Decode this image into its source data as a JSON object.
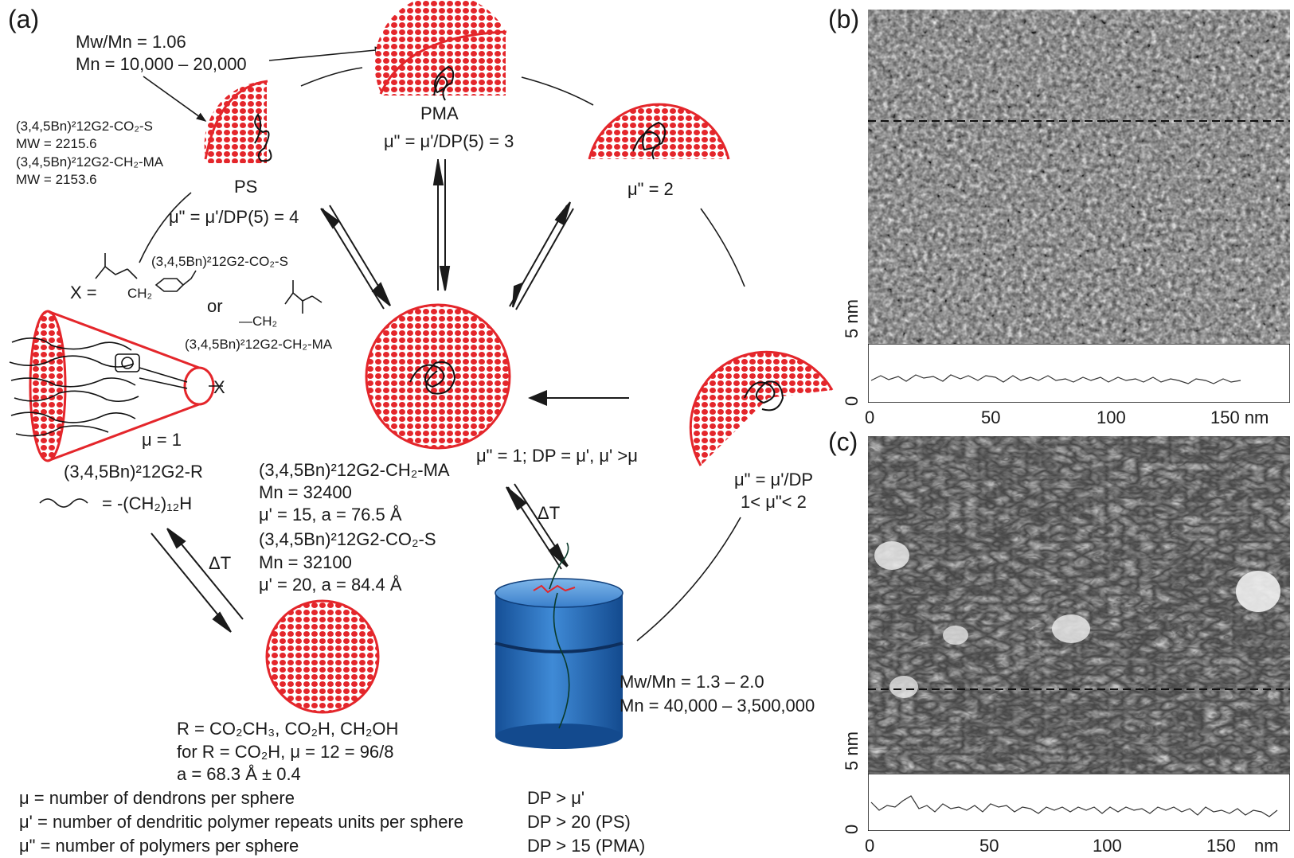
{
  "panels": {
    "a": "(a)",
    "b": "(b)",
    "c": "(c)"
  },
  "top_left": {
    "ratio": "Mw/Mn = 1.06",
    "mn": "Mn = 10,000 – 20,000"
  },
  "ps_info": {
    "l1": "(3,4,5Bn)²12G2-CO₂-S",
    "l2": "MW = 2215.6",
    "l3": "(3,4,5Bn)²12G2-CH₂-MA",
    "l4": "MW = 2153.6"
  },
  "ps": {
    "name": "PS",
    "mu": "μ\" = μ'/DP(5) = 4"
  },
  "pma": {
    "name": "PMA",
    "mu": "μ\" = μ'/DP(5) = 3"
  },
  "right_top": {
    "mu": "μ\" = 2"
  },
  "right_mid": {
    "mu1": "μ\" = μ'/DP",
    "mu2": "1< μ\"< 2"
  },
  "x_def": {
    "x": "X =",
    "opt1": "(3,4,5Bn)²12G2-CO₂-S",
    "ch2a": "CH₂",
    "or": "or",
    "ch2b": "—CH₂",
    "opt2": "(3,4,5Bn)²12G2-CH₂-MA"
  },
  "cone": {
    "x": "X",
    "mu": "μ = 1",
    "name": "(3,4,5Bn)²12G2-R",
    "chain": "= -(CH₂)₁₂H"
  },
  "center": {
    "mu": "μ\" = 1; DP = μ', μ' >μ",
    "l1": "(3,4,5Bn)²12G2-CH₂-MA",
    "l2": "Mn = 32400",
    "l3": "μ' = 15, a = 76.5  Å",
    "l4": "(3,4,5Bn)²12G2-CO₂-S",
    "l5": "Mn = 32100",
    "l6": "μ' = 20, a = 84.4  Å"
  },
  "dT": "ΔT",
  "bottom_sphere": {
    "l1": "R = CO₂CH₃, CO₂H, CH₂OH",
    "l2": "for R = CO₂H, μ = 12 = 96/8",
    "l3": "a = 68.3 Å ± 0.4"
  },
  "definitions": [
    "μ = number of dendrons per sphere",
    "μ' = number of dendritic polymer repeats units per sphere",
    "μ\" = number of polymers per sphere"
  ],
  "cylinder": {
    "ratio": "Mw/Mn = 1.3 – 2.0",
    "mn": "Mn = 40,000 – 3,500,000",
    "dp1": "DP > μ'",
    "dp2": "DP > 20 (PS)",
    "dp3": "DP > 15 (PMA)"
  },
  "afm": {
    "b": {
      "scale": "5 nm",
      "zero": "0",
      "ticks": [
        "0",
        "50",
        "100",
        "150 nm"
      ]
    },
    "c": {
      "scale": "5 nm",
      "zero": "0",
      "ticks": [
        "0",
        "50",
        "100",
        "150",
        "nm"
      ]
    }
  },
  "colors": {
    "sphere_red": "#e4262b",
    "cylinder_blue": "#2a6fc4"
  }
}
